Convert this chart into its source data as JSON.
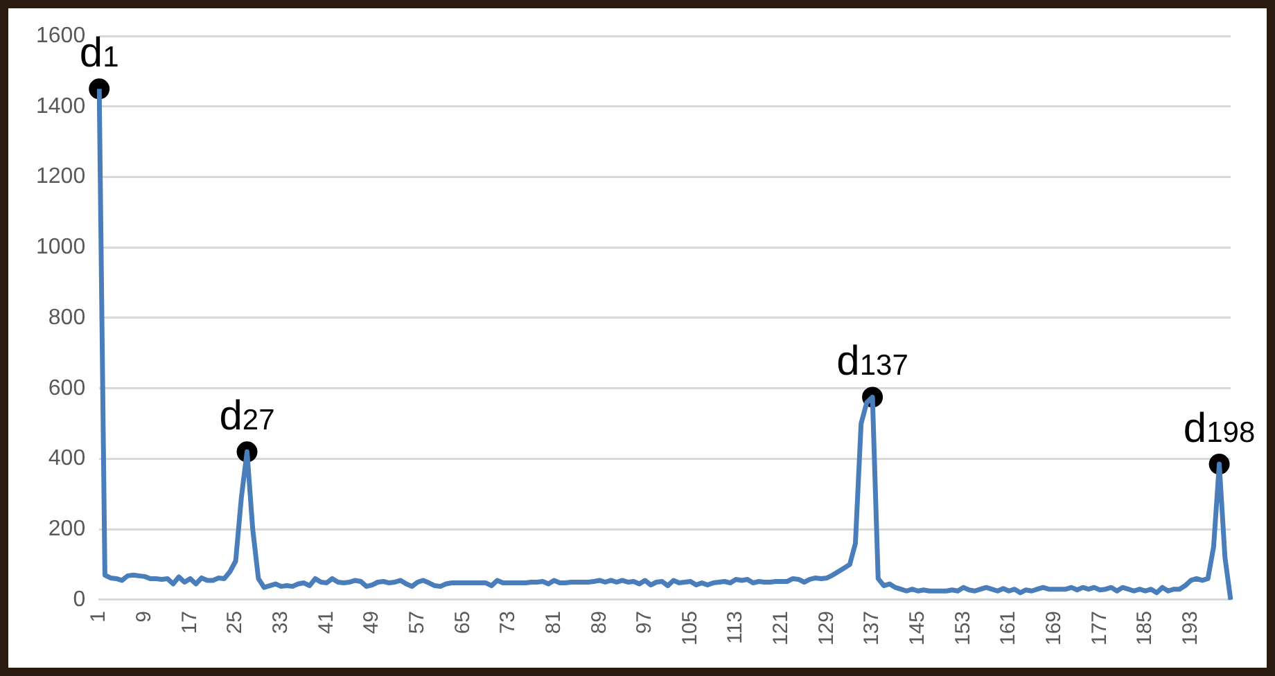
{
  "chart_data": {
    "type": "line",
    "categories": [
      "1",
      null,
      null,
      null,
      null,
      null,
      null,
      null,
      "9",
      null,
      null,
      null,
      null,
      null,
      null,
      null,
      "17",
      null,
      null,
      null,
      null,
      null,
      null,
      null,
      "25",
      null,
      null,
      null,
      null,
      null,
      null,
      null,
      "33",
      null,
      null,
      null,
      null,
      null,
      null,
      null,
      "41",
      null,
      null,
      null,
      null,
      null,
      null,
      null,
      "49",
      null,
      null,
      null,
      null,
      null,
      null,
      null,
      "57",
      null,
      null,
      null,
      null,
      null,
      null,
      null,
      "65",
      null,
      null,
      null,
      null,
      null,
      null,
      null,
      "73",
      null,
      null,
      null,
      null,
      null,
      null,
      null,
      "81",
      null,
      null,
      null,
      null,
      null,
      null,
      null,
      "89",
      null,
      null,
      null,
      null,
      null,
      null,
      null,
      "97",
      null,
      null,
      null,
      null,
      null,
      null,
      null,
      "105",
      null,
      null,
      null,
      null,
      null,
      null,
      null,
      "113",
      null,
      null,
      null,
      null,
      null,
      null,
      null,
      "121",
      null,
      null,
      null,
      null,
      null,
      null,
      null,
      "129",
      null,
      null,
      null,
      null,
      null,
      null,
      null,
      "137",
      null,
      null,
      null,
      null,
      null,
      null,
      null,
      "145",
      null,
      null,
      null,
      null,
      null,
      null,
      null,
      "153",
      null,
      null,
      null,
      null,
      null,
      null,
      null,
      "161",
      null,
      null,
      null,
      null,
      null,
      null,
      null,
      "169",
      null,
      null,
      null,
      null,
      null,
      null,
      null,
      "177",
      null,
      null,
      null,
      null,
      null,
      null,
      null,
      "185",
      null,
      null,
      null,
      null,
      null,
      null,
      null,
      "193",
      null,
      null,
      null,
      null,
      null,
      null,
      null
    ],
    "series": [
      {
        "type": "line",
        "color": "#4a7ebb",
        "marker": "none",
        "values": [
          1450,
          70,
          62,
          60,
          55,
          68,
          70,
          68,
          66,
          60,
          60,
          58,
          60,
          45,
          65,
          50,
          60,
          45,
          62,
          55,
          55,
          62,
          60,
          80,
          110,
          290,
          420,
          200,
          60,
          35,
          40,
          45,
          38,
          40,
          38,
          45,
          48,
          40,
          60,
          50,
          48,
          60,
          50,
          48,
          50,
          55,
          52,
          38,
          42,
          50,
          52,
          48,
          50,
          55,
          45,
          38,
          50,
          55,
          48,
          40,
          38,
          45,
          48,
          48,
          48,
          48,
          48,
          48,
          48,
          40,
          55,
          48,
          48,
          48,
          48,
          48,
          50,
          50,
          52,
          45,
          55,
          48,
          48,
          50,
          50,
          50,
          50,
          52,
          55,
          50,
          55,
          50,
          55,
          50,
          52,
          45,
          55,
          42,
          50,
          52,
          40,
          55,
          48,
          50,
          52,
          42,
          48,
          42,
          48,
          50,
          52,
          48,
          58,
          55,
          58,
          48,
          52,
          50,
          50,
          52,
          52,
          52,
          60,
          58,
          50,
          58,
          62,
          60,
          62,
          70,
          80,
          90,
          100,
          160,
          500,
          560,
          575,
          60,
          40,
          45,
          35,
          30,
          25,
          30,
          25,
          28,
          25,
          25,
          25,
          25,
          28,
          25,
          35,
          28,
          25,
          30,
          35,
          30,
          25,
          32,
          25,
          30,
          20,
          28,
          25,
          30,
          35,
          30,
          30,
          30,
          30,
          35,
          28,
          35,
          30,
          35,
          28,
          30,
          35,
          25,
          35,
          30,
          25,
          30,
          25,
          30,
          20,
          35,
          25,
          30,
          30,
          40,
          55,
          60,
          55,
          60,
          150,
          385,
          120,
          0
        ]
      },
      {
        "type": "scatter",
        "color": "#000000",
        "marker": "circle",
        "values": [
          1450,
          null,
          null,
          null,
          null,
          null,
          null,
          null,
          null,
          null,
          null,
          null,
          null,
          null,
          null,
          null,
          null,
          null,
          null,
          null,
          null,
          null,
          null,
          null,
          null,
          null,
          420,
          null,
          null,
          null,
          null,
          null,
          null,
          null,
          null,
          null,
          null,
          null,
          null,
          null,
          null,
          null,
          null,
          null,
          null,
          null,
          null,
          null,
          null,
          null,
          null,
          null,
          null,
          null,
          null,
          null,
          null,
          null,
          null,
          null,
          null,
          null,
          null,
          null,
          null,
          null,
          null,
          null,
          null,
          null,
          null,
          null,
          null,
          null,
          null,
          null,
          null,
          null,
          null,
          null,
          null,
          null,
          null,
          null,
          null,
          null,
          null,
          null,
          null,
          null,
          null,
          null,
          null,
          null,
          null,
          null,
          null,
          null,
          null,
          null,
          null,
          null,
          null,
          null,
          null,
          null,
          null,
          null,
          null,
          null,
          null,
          null,
          null,
          null,
          null,
          null,
          null,
          null,
          null,
          null,
          null,
          null,
          null,
          null,
          null,
          null,
          null,
          null,
          null,
          null,
          null,
          null,
          null,
          null,
          null,
          null,
          575,
          null,
          null,
          null,
          null,
          null,
          null,
          null,
          null,
          null,
          null,
          null,
          null,
          null,
          null,
          null,
          null,
          null,
          null,
          null,
          null,
          null,
          null,
          null,
          null,
          null,
          null,
          null,
          null,
          null,
          null,
          null,
          null,
          null,
          null,
          null,
          null,
          null,
          null,
          null,
          null,
          null,
          null,
          null,
          null,
          null,
          null,
          null,
          null,
          null,
          null,
          null,
          null,
          null,
          null,
          null,
          null,
          null,
          null,
          null,
          null,
          385,
          null,
          null
        ]
      }
    ],
    "annotations": [
      {
        "text": "d$_{1}$",
        "y": 1450
      },
      {
        "text": "d$_{27}$",
        "y": 420
      },
      {
        "text": "d$_{137}$",
        "y": 575
      },
      {
        "text": "d$_{198}$",
        "y": 385
      }
    ],
    "ylim": [
      0,
      1600
    ],
    "yticks": [
      0,
      200,
      400,
      600,
      800,
      1000,
      1200,
      1400,
      1600
    ],
    "grid": "y",
    "legend": false
  }
}
